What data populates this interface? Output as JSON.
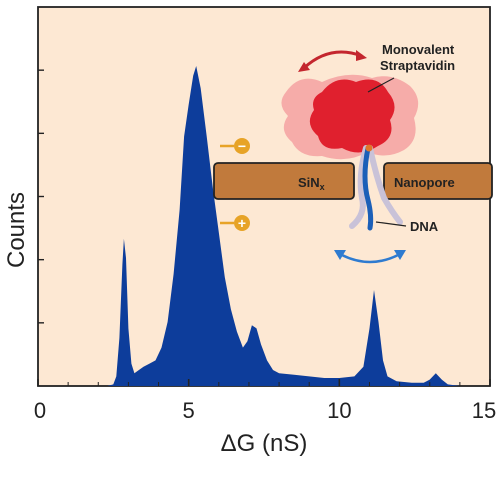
{
  "chart_data": {
    "type": "area",
    "xlabel": "ΔG (nS)",
    "ylabel": "Counts",
    "xlim": [
      0,
      15
    ],
    "ylim": [
      0,
      1
    ],
    "x_ticks": [
      0,
      5,
      10,
      15
    ],
    "grid": false,
    "series": [
      {
        "color": "#0d3d9b",
        "points": [
          [
            2.0,
            0.0
          ],
          [
            2.3,
            0.0
          ],
          [
            2.5,
            0.005
          ],
          [
            2.6,
            0.03
          ],
          [
            2.7,
            0.15
          ],
          [
            2.8,
            0.38
          ],
          [
            2.85,
            0.46
          ],
          [
            2.92,
            0.4
          ],
          [
            3.0,
            0.18
          ],
          [
            3.1,
            0.07
          ],
          [
            3.2,
            0.04
          ],
          [
            3.35,
            0.05
          ],
          [
            3.5,
            0.06
          ],
          [
            3.7,
            0.07
          ],
          [
            3.9,
            0.08
          ],
          [
            4.1,
            0.12
          ],
          [
            4.3,
            0.2
          ],
          [
            4.5,
            0.35
          ],
          [
            4.7,
            0.55
          ],
          [
            4.85,
            0.78
          ],
          [
            5.0,
            0.88
          ],
          [
            5.15,
            0.97
          ],
          [
            5.25,
            1.0
          ],
          [
            5.4,
            0.93
          ],
          [
            5.6,
            0.78
          ],
          [
            5.8,
            0.62
          ],
          [
            6.0,
            0.48
          ],
          [
            6.2,
            0.34
          ],
          [
            6.4,
            0.24
          ],
          [
            6.6,
            0.17
          ],
          [
            6.8,
            0.12
          ],
          [
            6.95,
            0.14
          ],
          [
            7.1,
            0.19
          ],
          [
            7.25,
            0.18
          ],
          [
            7.4,
            0.13
          ],
          [
            7.6,
            0.08
          ],
          [
            7.8,
            0.05
          ],
          [
            8.0,
            0.04
          ],
          [
            8.5,
            0.035
          ],
          [
            9.0,
            0.03
          ],
          [
            9.5,
            0.025
          ],
          [
            10.0,
            0.025
          ],
          [
            10.5,
            0.03
          ],
          [
            10.8,
            0.06
          ],
          [
            11.0,
            0.18
          ],
          [
            11.15,
            0.3
          ],
          [
            11.3,
            0.2
          ],
          [
            11.45,
            0.08
          ],
          [
            11.6,
            0.03
          ],
          [
            11.9,
            0.015
          ],
          [
            12.4,
            0.01
          ],
          [
            12.8,
            0.01
          ],
          [
            13.0,
            0.02
          ],
          [
            13.2,
            0.04
          ],
          [
            13.4,
            0.02
          ],
          [
            13.6,
            0.005
          ],
          [
            14.0,
            0.0
          ]
        ]
      }
    ]
  },
  "annotations": {
    "protein_label_line1": "Monovalent",
    "protein_label_line2": "Straptavidin",
    "membrane_left_label": "SiN",
    "membrane_left_subscript": "x",
    "membrane_right_label": "Nanopore",
    "dna_label": "DNA",
    "minus_sign": "−",
    "plus_sign": "+"
  },
  "colors": {
    "plot_background": "#fde8d3",
    "bars": "#0d3d9b",
    "membrane": "#c17a3c",
    "charge_circle": "#e7a327",
    "protein_core": "#e0202e",
    "protein_halo": "#f4a1a1",
    "dna": "#1b5fb8",
    "arrow_red": "#c4262e",
    "arrow_blue": "#2e7bd0"
  }
}
